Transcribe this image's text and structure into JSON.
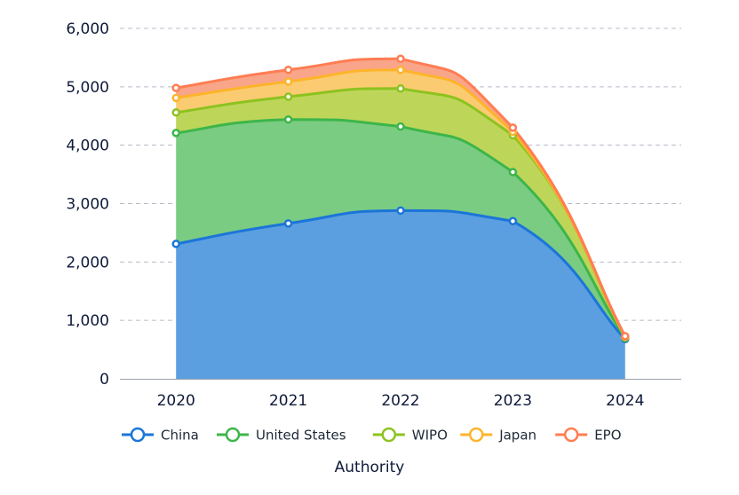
{
  "chart_data": {
    "type": "area",
    "stacked": true,
    "smooth": true,
    "title": "",
    "xlabel": "Authority",
    "ylabel": "",
    "categories": [
      "2020",
      "2021",
      "2022",
      "2023",
      "2024"
    ],
    "ylim": [
      0,
      6000
    ],
    "y_ticks": [
      0,
      1000,
      2000,
      3000,
      4000,
      5000,
      6000
    ],
    "y_tick_labels": [
      "0",
      "1,000",
      "2,000",
      "3,000",
      "4,000",
      "5,000",
      "6,000"
    ],
    "grid": true,
    "legend_position": "bottom",
    "series": [
      {
        "name": "China",
        "values": [
          2310,
          2660,
          2880,
          2700,
          680
        ],
        "line_color": "#1b75d9",
        "fill_color": "#5b9fe0"
      },
      {
        "name": "United States",
        "values": [
          1900,
          1780,
          1440,
          840,
          20
        ],
        "line_color": "#3db54a",
        "fill_color": "#7acc82"
      },
      {
        "name": "WIPO",
        "values": [
          350,
          390,
          650,
          630,
          10
        ],
        "line_color": "#8dc21f",
        "fill_color": "#bdd65a"
      },
      {
        "name": "Japan",
        "values": [
          250,
          260,
          320,
          60,
          10
        ],
        "line_color": "#fdb42b",
        "fill_color": "#fbcb71"
      },
      {
        "name": "EPO",
        "values": [
          170,
          200,
          190,
          70,
          10
        ],
        "line_color": "#ff7d52",
        "fill_color": "#f9a58a"
      }
    ]
  }
}
